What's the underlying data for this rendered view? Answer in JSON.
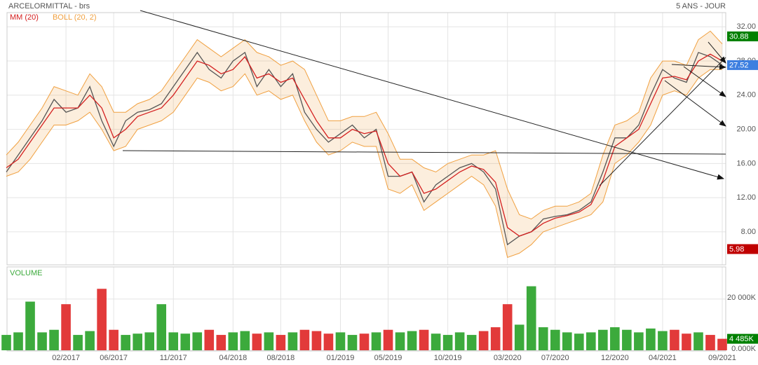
{
  "chart_data": [
    {
      "type": "line",
      "title": "ARCELORMITTAL - brs",
      "subtitle": "5 ANS - JOUR",
      "categories": [
        null,
        null,
        null,
        null,
        null,
        "02/2017",
        null,
        null,
        null,
        "06/2017",
        null,
        null,
        null,
        null,
        "11/2017",
        null,
        null,
        null,
        null,
        "04/2018",
        null,
        null,
        null,
        "08/2018",
        null,
        null,
        null,
        null,
        "01/2019",
        null,
        null,
        null,
        "05/2019",
        null,
        null,
        null,
        null,
        "10/2019",
        null,
        null,
        null,
        null,
        "03/2020",
        null,
        null,
        null,
        "07/2020",
        null,
        null,
        null,
        null,
        "12/2020",
        null,
        null,
        null,
        "04/2021",
        null,
        null,
        null,
        null,
        "09/2021"
      ],
      "values": [
        15,
        17,
        19,
        21,
        23.5,
        22,
        22.5,
        25,
        21,
        18,
        21,
        22,
        22.3,
        23,
        25,
        27,
        29,
        27,
        26,
        28,
        29,
        25,
        27,
        25,
        26.5,
        22,
        20,
        18.5,
        19.5,
        20.5,
        19,
        20,
        14.5,
        14.5,
        15,
        11.5,
        13.5,
        14.5,
        15.5,
        16,
        15,
        13,
        6.5,
        7.5,
        8,
        9.5,
        9.8,
        10,
        10.5,
        11.5,
        15,
        19,
        19,
        20.5,
        24,
        27,
        26,
        25.5,
        29,
        28.5,
        27.52
      ],
      "color": "#555555",
      "series": [
        {
          "name": "MM (20)",
          "color": "#d42020",
          "values": [
            15.5,
            16.5,
            18.5,
            20.5,
            22.5,
            22.5,
            22.5,
            24,
            22.5,
            19,
            20,
            21.5,
            22,
            22.5,
            24,
            26,
            28,
            27.5,
            26.5,
            27,
            28.5,
            26,
            26.5,
            25.5,
            26,
            23.5,
            21,
            19,
            19,
            20,
            19.5,
            19.8,
            16,
            14.5,
            15,
            12.5,
            13,
            14,
            15,
            15.7,
            15.3,
            13.8,
            8.5,
            7.5,
            8,
            9,
            9.6,
            9.9,
            10.3,
            11.2,
            14,
            18,
            19,
            20,
            23,
            26,
            26.2,
            25.8,
            28,
            28.8,
            28
          ]
        },
        {
          "name": "BOLL (20, 2)",
          "color": "#f0a040",
          "upper": [
            17,
            18.5,
            20.5,
            22.5,
            25,
            24.5,
            24,
            26.5,
            25,
            22,
            22,
            23,
            23.5,
            24.5,
            26.5,
            28.5,
            30.5,
            29.5,
            28.5,
            29.5,
            30.5,
            29,
            28.5,
            27.5,
            28,
            27,
            24,
            21,
            21,
            21.5,
            21.5,
            22,
            19.5,
            16.5,
            16.5,
            15.5,
            15,
            16,
            16.5,
            17,
            17,
            17.5,
            13,
            10,
            9.5,
            10.5,
            11,
            11,
            11.5,
            12.5,
            17,
            20.5,
            21,
            22,
            26,
            28,
            28,
            27.5,
            30.5,
            31.5,
            30
          ],
          "lower": [
            14.5,
            15,
            16.5,
            18.5,
            20.5,
            20.5,
            21,
            22,
            20,
            17.5,
            18,
            20,
            20.5,
            21,
            22,
            24,
            26,
            25.5,
            24.5,
            25,
            26.5,
            24,
            24.5,
            23.5,
            24,
            21,
            18.5,
            17,
            17.5,
            18.5,
            18,
            18,
            13,
            12.5,
            13.5,
            10.5,
            11.5,
            12.5,
            13.5,
            14.5,
            13.5,
            11,
            5,
            5.5,
            6.5,
            8,
            8.5,
            9,
            9.5,
            10,
            11.5,
            16,
            17,
            18.5,
            20.5,
            24,
            24.5,
            24,
            26,
            27,
            27
          ]
        }
      ],
      "ylim": [
        4.3,
        33.5
      ],
      "yticks": [
        {
          "value": 8,
          "label": "8.00"
        },
        {
          "value": 12,
          "label": "12.00"
        },
        {
          "value": 16,
          "label": "16.00"
        },
        {
          "value": 20,
          "label": "20.00"
        },
        {
          "value": 24,
          "label": "24.00"
        },
        {
          "value": 28,
          "label": "28.00"
        },
        {
          "value": 32,
          "label": "32.00"
        }
      ],
      "price_labels": [
        {
          "value": 30.88,
          "color": "#008000"
        },
        {
          "value": 27.52,
          "color": "#3d7fe0"
        },
        {
          "value": 5.98,
          "color": "#c00000"
        }
      ],
      "grid": true
    },
    {
      "type": "bar",
      "title": "VOLUME",
      "values": [
        6000,
        7000,
        19000,
        7000,
        8000,
        18000,
        6000,
        7500,
        24000,
        8000,
        6000,
        6500,
        7000,
        18000,
        7000,
        6500,
        7000,
        8000,
        6000,
        7000,
        7500,
        6500,
        7000,
        6000,
        7000,
        8000,
        7500,
        6500,
        7000,
        6000,
        6500,
        7000,
        8000,
        7000,
        7500,
        8000,
        6500,
        6000,
        7000,
        6000,
        7500,
        9000,
        18000,
        10000,
        25000,
        9000,
        8000,
        7000,
        6500,
        7000,
        8000,
        9000,
        8000,
        7000,
        8500,
        7500,
        8000,
        6500,
        7000,
        6000,
        4485
      ],
      "up_color": "#3caa3c",
      "down_color": "#e23a3a",
      "ylim": [
        0,
        32000
      ],
      "yticks": [
        {
          "value": 0,
          "label": "0.000K"
        },
        {
          "value": 20000,
          "label": "20 000K"
        }
      ],
      "last_label": {
        "value": 4485,
        "label": "4 485K",
        "color": "#008000"
      },
      "grid": true
    }
  ]
}
